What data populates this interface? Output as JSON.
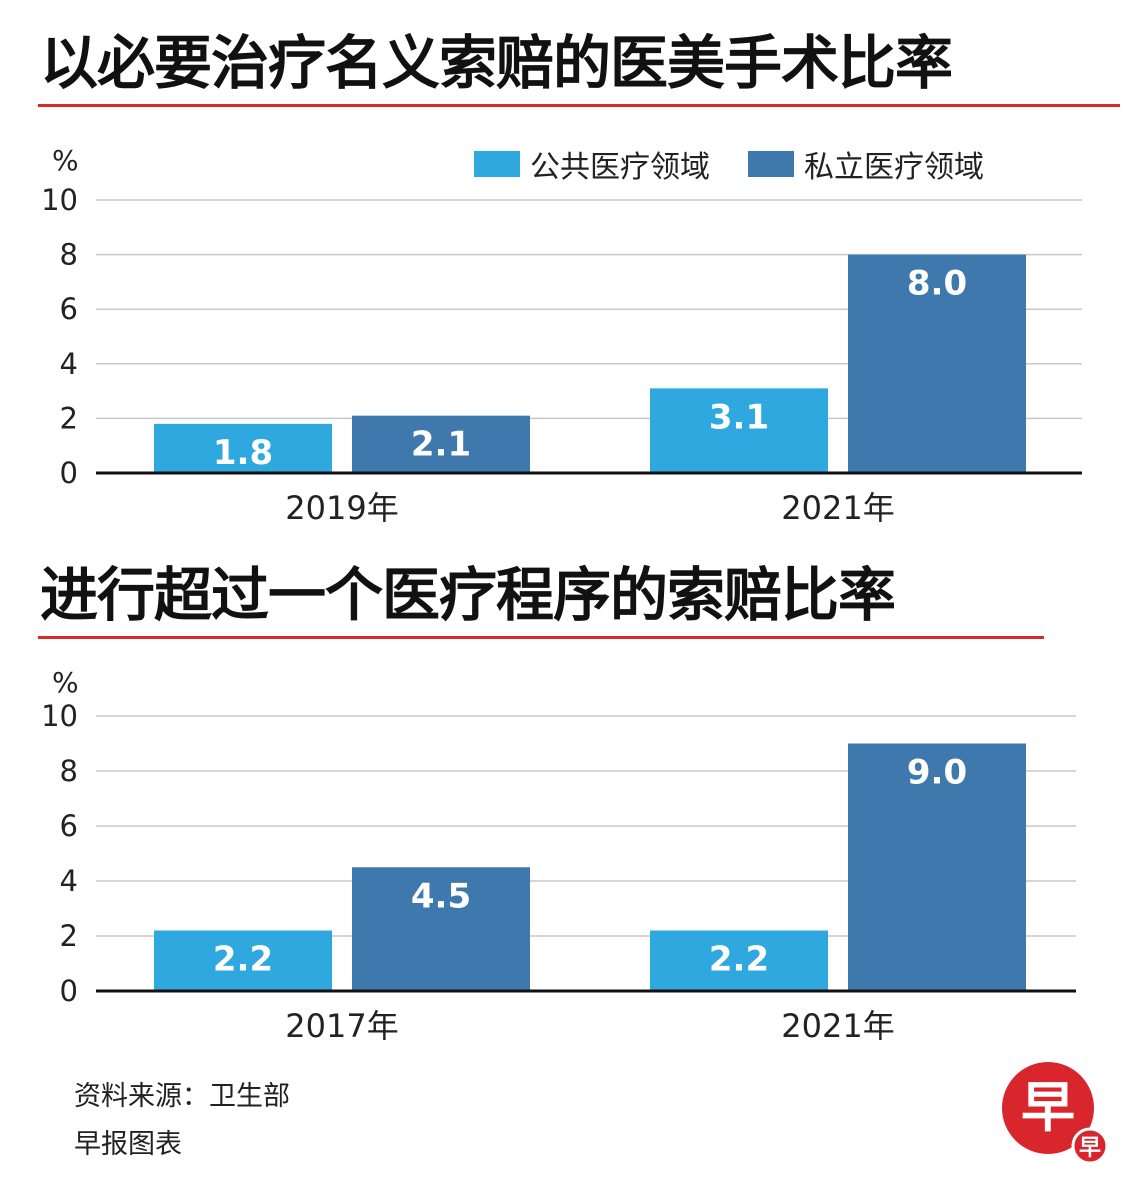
{
  "colors": {
    "public": "#2ea8df",
    "private": "#3f78ac",
    "rule": "#d92b2b",
    "grid": "#c8c8c8",
    "axis": "#111111",
    "logo": "#d9262c"
  },
  "legend": {
    "public_label": "公共医疗领域",
    "private_label": "私立医疗领域"
  },
  "source": "资料来源：卫生部",
  "credit": "早报图表",
  "logo": {
    "main_char": "早",
    "small_char": "早"
  },
  "chart_data": [
    {
      "type": "bar",
      "title": "以必要治疗名义索赔的医美手术比率",
      "unit": "%",
      "ylim": [
        0,
        10
      ],
      "yticks": [
        0,
        2,
        4,
        6,
        8,
        10
      ],
      "grid": true,
      "categories": [
        "2019年",
        "2021年"
      ],
      "series": [
        {
          "name": "公共医疗领域",
          "values": [
            1.8,
            3.1
          ]
        },
        {
          "name": "私立医疗领域",
          "values": [
            2.1,
            8.0
          ]
        }
      ]
    },
    {
      "type": "bar",
      "title": "进行超过一个医疗程序的索赔比率",
      "unit": "%",
      "ylim": [
        0,
        10
      ],
      "yticks": [
        0,
        2,
        4,
        6,
        8,
        10
      ],
      "grid": true,
      "categories": [
        "2017年",
        "2021年"
      ],
      "series": [
        {
          "name": "公共医疗领域",
          "values": [
            2.2,
            2.2
          ]
        },
        {
          "name": "私立医疗领域",
          "values": [
            4.5,
            9.0
          ]
        }
      ]
    }
  ]
}
